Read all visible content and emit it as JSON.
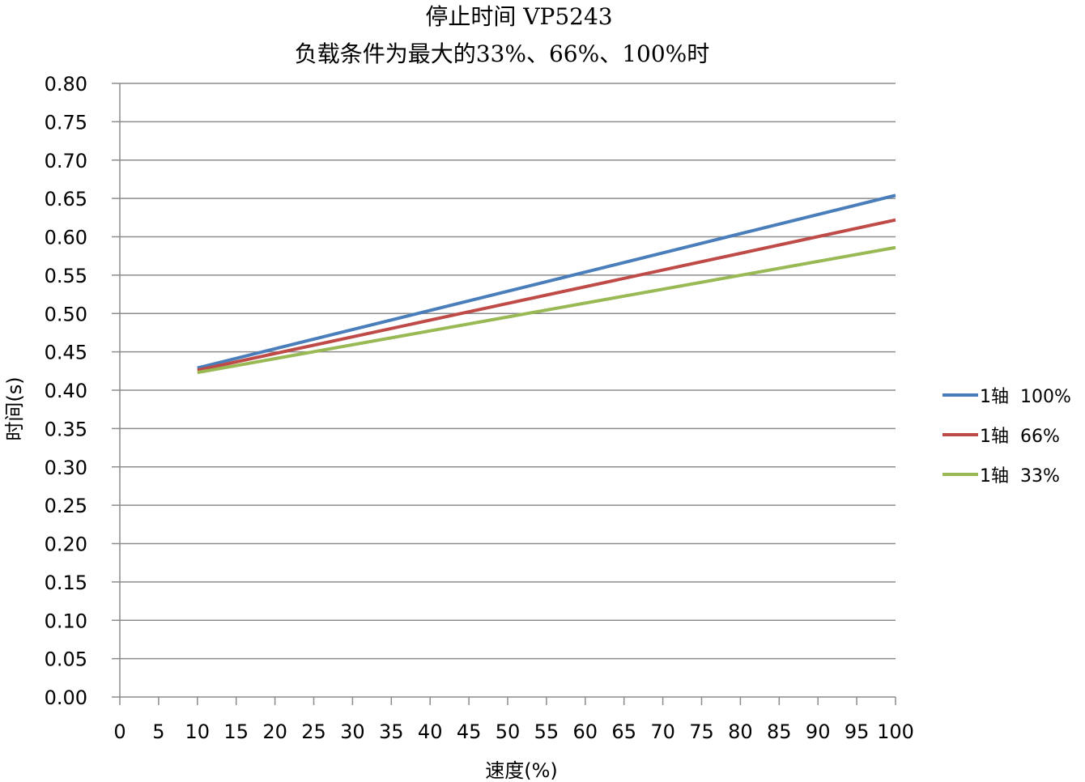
{
  "chart_data": {
    "type": "line",
    "title": "停止时间 VP5243",
    "subtitle": "负载条件为最大的33%、66%、100%时",
    "xlabel": "速度(%)",
    "ylabel": "时间(s)",
    "xlim": [
      0,
      100
    ],
    "ylim": [
      0,
      0.8
    ],
    "x_ticks": [
      "0",
      "5",
      "10",
      "15",
      "20",
      "25",
      "30",
      "35",
      "40",
      "45",
      "50",
      "55",
      "60",
      "65",
      "70",
      "75",
      "80",
      "85",
      "90",
      "95",
      "100"
    ],
    "y_ticks": [
      "0.00",
      "0.05",
      "0.10",
      "0.15",
      "0.20",
      "0.25",
      "0.30",
      "0.35",
      "0.40",
      "0.45",
      "0.50",
      "0.55",
      "0.60",
      "0.65",
      "0.70",
      "0.75",
      "0.80"
    ],
    "grid": true,
    "legend_position": "right",
    "series": [
      {
        "name": "1轴  100%",
        "color": "#4a7ebb",
        "x": [
          10,
          100
        ],
        "y": [
          0.429,
          0.654
        ]
      },
      {
        "name": "1轴  66%",
        "color": "#be4b48",
        "x": [
          10,
          100
        ],
        "y": [
          0.426,
          0.622
        ]
      },
      {
        "name": "1轴  33%",
        "color": "#98b954",
        "x": [
          10,
          100
        ],
        "y": [
          0.423,
          0.586
        ]
      }
    ]
  }
}
